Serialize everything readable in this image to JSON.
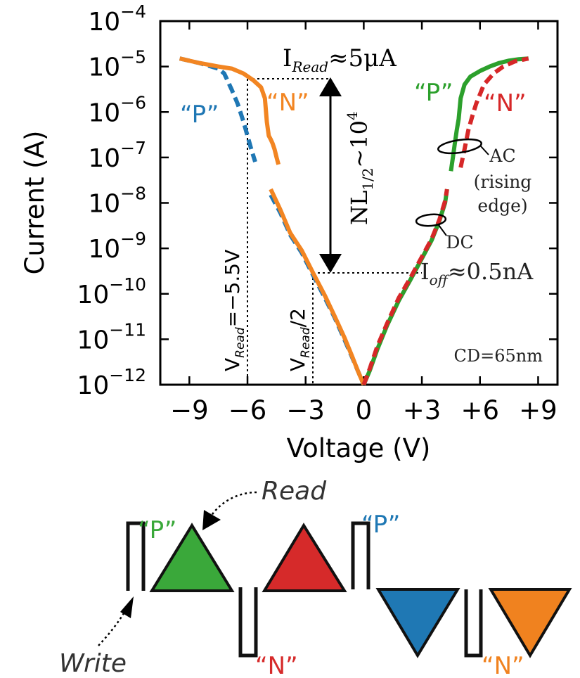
{
  "chart_data": {
    "type": "line",
    "xlabel": "Voltage (V)",
    "ylabel": "Current (A)",
    "xlim": [
      -10.5,
      10
    ],
    "ylim": [
      -12,
      -4
    ],
    "y_scale": "log",
    "grid": false,
    "x_ticks": [
      {
        "v": -9,
        "label": "−9"
      },
      {
        "v": -6,
        "label": "−6"
      },
      {
        "v": -3,
        "label": "−3"
      },
      {
        "v": 0,
        "label": "0"
      },
      {
        "v": 3,
        "label": "+3"
      },
      {
        "v": 6,
        "label": "+6"
      },
      {
        "v": 9,
        "label": "+9"
      }
    ],
    "y_ticks": [
      {
        "v": -4,
        "base": "10",
        "exp": "−4"
      },
      {
        "v": -5,
        "base": "10",
        "exp": "−5"
      },
      {
        "v": -6,
        "base": "10",
        "exp": "−6"
      },
      {
        "v": -7,
        "base": "10",
        "exp": "−7"
      },
      {
        "v": -8,
        "base": "10",
        "exp": "−8"
      },
      {
        "v": -9,
        "base": "10",
        "exp": "−9"
      },
      {
        "v": -10,
        "base": "10",
        "exp": "−10"
      },
      {
        "v": -11,
        "base": "10",
        "exp": "−11"
      },
      {
        "v": -12,
        "base": "10",
        "exp": "−12"
      }
    ],
    "series": [
      {
        "name": "“P”",
        "color": "#1f77b4",
        "style": "dashed",
        "segments": [
          {
            "x": [
              -9.5,
              -8.5,
              -7.5,
              -7.2,
              -6.8,
              -6.5,
              -6.2,
              -6.0,
              -5.8,
              -5.6
            ],
            "y": [
              1.5e-05,
              1.2e-05,
              9e-06,
              7e-06,
              3e-06,
              1.5e-06,
              6e-07,
              3e-07,
              1.5e-07,
              8e-08
            ]
          },
          {
            "x": [
              -4.8,
              -4.3,
              -3.8,
              -3.2,
              -2.6,
              -2.0,
              -1.5,
              -1.0,
              -0.6,
              -0.3,
              0
            ],
            "y": [
              1.5e-08,
              6e-09,
              2e-09,
              8e-10,
              2.5e-10,
              8e-11,
              3e-11,
              1e-11,
              4e-12,
              2e-12,
              1e-12
            ]
          }
        ]
      },
      {
        "name": "“N”",
        "color": "#f28522",
        "style": "solid",
        "segments": [
          {
            "x": [
              -9.5,
              -8.5,
              -7.5,
              -6.8,
              -6.2,
              -5.7,
              -5.3,
              -5.1,
              -5.0,
              -4.9,
              -4.8,
              -4.7,
              -4.6,
              -4.5,
              -4.4
            ],
            "y": [
              1.5e-05,
              1.2e-05,
              1e-05,
              9e-06,
              7e-06,
              5e-06,
              3.5e-06,
              2e-06,
              6e-07,
              3e-07,
              2.5e-07,
              2e-07,
              1.5e-07,
              1e-07,
              7e-08
            ]
          },
          {
            "x": [
              -4.8,
              -4.3,
              -3.8,
              -3.2,
              -2.6,
              -2.0,
              -1.5,
              -1.0,
              -0.6,
              -0.3,
              0
            ],
            "y": [
              2e-08,
              7e-09,
              2.2e-09,
              9e-10,
              2.8e-10,
              9e-11,
              3.2e-11,
              1.1e-11,
              4.2e-12,
              2e-12,
              1e-12
            ]
          }
        ]
      },
      {
        "name": "“P”",
        "color": "#2ca02c",
        "style": "solid",
        "segments": [
          {
            "x": [
              0,
              0.3,
              0.7,
              1.2,
              1.8,
              2.4,
              3.0,
              3.5,
              3.9,
              4.2,
              4.3
            ],
            "y": [
              1e-12,
              2e-12,
              6e-12,
              2e-11,
              7e-11,
              2e-10,
              6e-10,
              1.5e-09,
              4e-09,
              1e-08,
              2e-08
            ]
          },
          {
            "x": [
              4.5,
              4.6,
              4.7,
              4.8,
              4.9,
              5.0,
              5.2,
              5.5,
              6.0,
              6.5,
              7.0,
              7.5,
              8.0,
              8.5
            ],
            "y": [
              5e-08,
              1e-07,
              2e-07,
              4e-07,
              7e-07,
              2e-06,
              4e-06,
              6e-06,
              8e-06,
              1e-05,
              1.2e-05,
              1.35e-05,
              1.45e-05,
              1.5e-05
            ]
          }
        ]
      },
      {
        "name": "“N”",
        "color": "#d62728",
        "style": "dashed",
        "segments": [
          {
            "x": [
              0,
              0.3,
              0.7,
              1.2,
              1.8,
              2.4,
              3.0,
              3.5,
              3.9,
              4.2,
              4.3
            ],
            "y": [
              1e-12,
              2.2e-12,
              7e-12,
              2.2e-11,
              8e-11,
              2.2e-10,
              6.5e-10,
              1.6e-09,
              4.2e-09,
              1.1e-08,
              2e-08
            ]
          },
          {
            "x": [
              5.0,
              5.2,
              5.4,
              5.6,
              5.8,
              6.2,
              6.7,
              7.2,
              7.8,
              8.5
            ],
            "y": [
              6e-08,
              1.5e-07,
              4e-07,
              8e-07,
              1.5e-06,
              4e-06,
              7e-06,
              1e-05,
              1.3e-05,
              1.5e-05
            ]
          }
        ]
      }
    ],
    "annotations": {
      "i_read": {
        "base": "I",
        "sub": "Read",
        "rest": "≈5μA"
      },
      "i_off": {
        "base": "I",
        "sub": "off",
        "rest": "≈0.5nA"
      },
      "nl": {
        "base": "NL",
        "sub": "1/2",
        "mid": "~10",
        "sup": "4"
      },
      "v_read": {
        "base": "V",
        "sub": "Read",
        "rest": "=−5.5V"
      },
      "v_read_half": {
        "base": "V",
        "sub": "Read",
        "rest": "/2"
      },
      "ac_label": [
        "AC",
        "(rising",
        "edge)"
      ],
      "dc_label": "DC",
      "cd_label": "CD=65nm",
      "p_label_left": "“P”",
      "n_label_left": "“N”",
      "p_label_right": "“P”",
      "n_label_right": "“N”"
    }
  },
  "pulse_diagram": {
    "read_label": "Read",
    "write_label": "Write",
    "p_label": "“P”",
    "n_label": "“N”",
    "colors": {
      "green": "#3aa83a",
      "red": "#d62a2a",
      "blue": "#1f78b4",
      "orange": "#f0821f"
    }
  }
}
